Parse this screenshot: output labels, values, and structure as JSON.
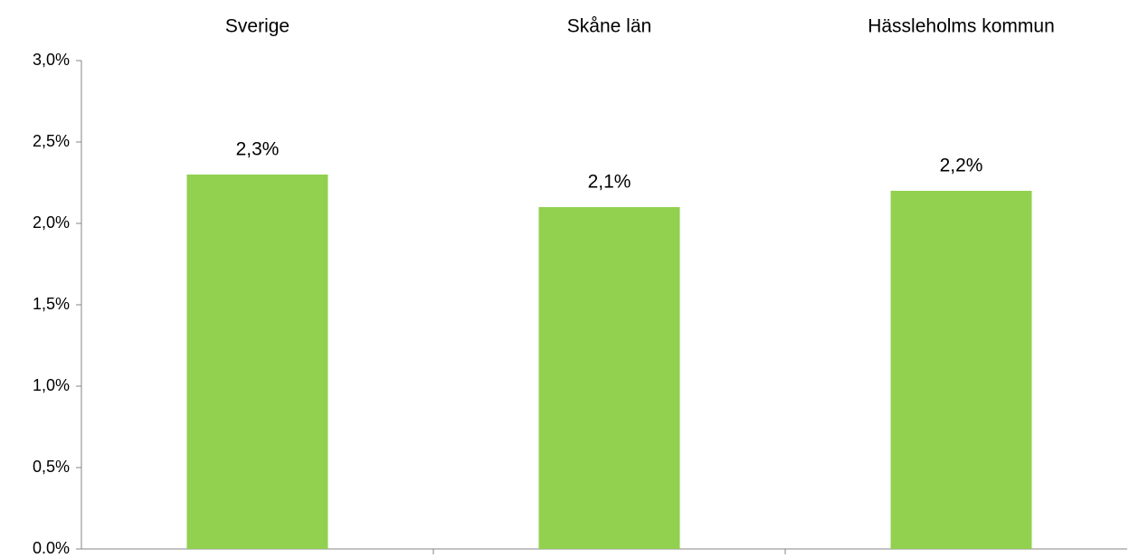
{
  "chart_data": {
    "type": "bar",
    "categories": [
      "Sverige",
      "Skåne län",
      "Hässleholms kommun"
    ],
    "values": [
      2.3,
      2.1,
      2.2
    ],
    "value_labels": [
      "2,3%",
      "2,1%",
      "2,2%"
    ],
    "color": "#92d050",
    "ylim": [
      0,
      3
    ],
    "yticks": [
      {
        "value": 0,
        "label": "0.0%"
      },
      {
        "value": 0.5,
        "label": "0,5%"
      },
      {
        "value": 1,
        "label": "1,0%"
      },
      {
        "value": 1.5,
        "label": "1,5%"
      },
      {
        "value": 2,
        "label": "2,0%"
      },
      {
        "value": 2.5,
        "label": "2,5%"
      },
      {
        "value": 3,
        "label": "3,0%"
      }
    ],
    "grid": false
  }
}
